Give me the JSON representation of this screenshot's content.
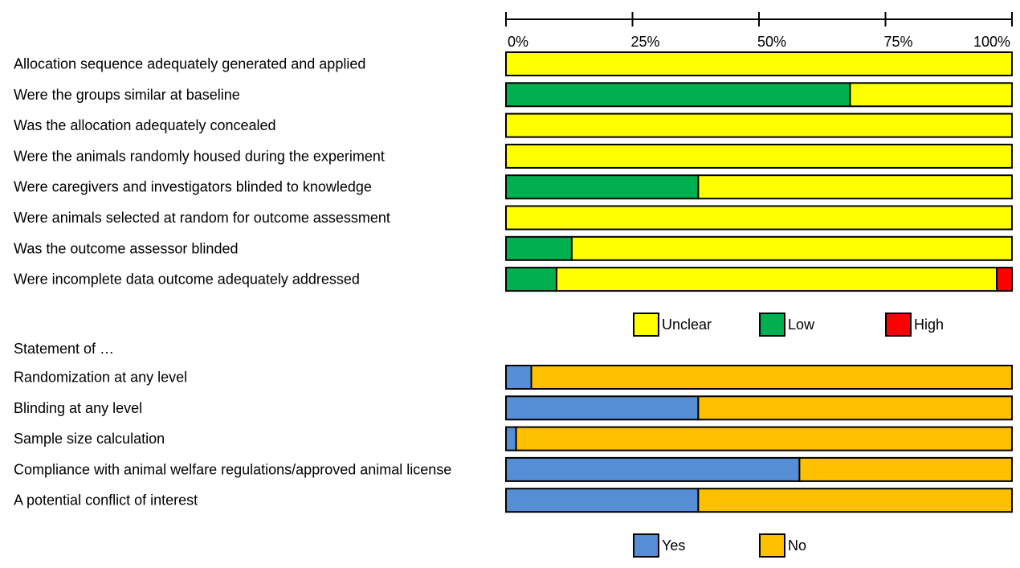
{
  "chart_data": [
    {
      "type": "bar",
      "orientation": "horizontal",
      "stacked": true,
      "axis_ticks": [
        "0%",
        "25%",
        "50%",
        "75%",
        "100%"
      ],
      "xlim": [
        0,
        100
      ],
      "categories": [
        "Allocation sequence adequately generated and applied",
        "Were the groups similar at baseline",
        "Was the allocation adequately concealed",
        "Were the animals randomly housed during the experiment",
        "Were caregivers and investigators blinded to knowledge",
        "Were animals selected at random for outcome assessment",
        "Was the outcome assessor blinded",
        "Were incomplete data outcome adequately addressed"
      ],
      "series": [
        {
          "name": "Low",
          "color": "#00B050",
          "values": [
            0,
            68,
            0,
            0,
            38,
            0,
            13,
            10
          ]
        },
        {
          "name": "Unclear",
          "color": "#FFFF00",
          "values": [
            100,
            32,
            100,
            100,
            62,
            100,
            87,
            87
          ]
        },
        {
          "name": "High",
          "color": "#FF0000",
          "values": [
            0,
            0,
            0,
            0,
            0,
            0,
            0,
            3
          ]
        }
      ],
      "legend": [
        "Unclear",
        "Low",
        "High"
      ],
      "legend_placement": "bottom"
    },
    {
      "type": "bar",
      "orientation": "horizontal",
      "stacked": true,
      "xlim": [
        0,
        100
      ],
      "heading": "Statement of …",
      "categories": [
        "Randomization at any level",
        "Blinding at any level",
        "Sample size calculation",
        "Compliance with animal welfare regulations/approved animal license",
        "A potential conflict of interest"
      ],
      "series": [
        {
          "name": "Yes",
          "color": "#558ED5",
          "values": [
            5,
            38,
            2,
            58,
            38
          ]
        },
        {
          "name": "No",
          "color": "#FFC000",
          "values": [
            95,
            62,
            98,
            42,
            62
          ]
        }
      ],
      "legend": [
        "Yes",
        "No"
      ],
      "legend_placement": "bottom"
    }
  ]
}
